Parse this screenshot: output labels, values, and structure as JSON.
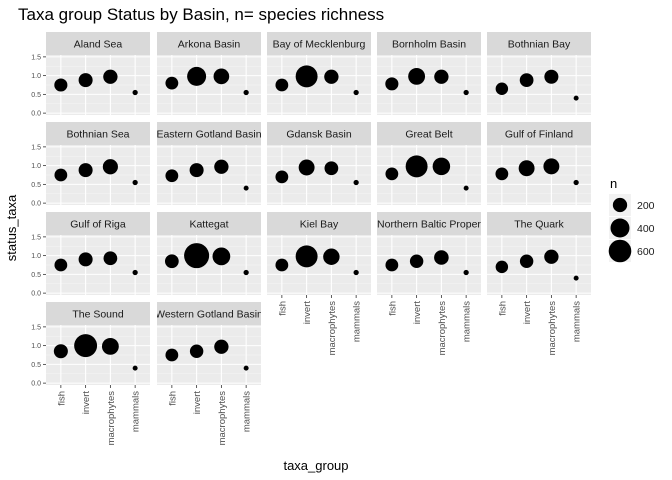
{
  "chart_data": {
    "type": "scatter",
    "title": "Taxa group Status by Basin, n= species richness",
    "xlabel": "taxa_group",
    "ylabel": "status_taxa",
    "categories": [
      "fish",
      "invert",
      "macrophytes",
      "mammals"
    ],
    "ylim": [
      -0.05,
      1.55
    ],
    "yticks": [
      "0.0",
      "0.5",
      "1.0",
      "1.5"
    ],
    "grid": true,
    "legend": {
      "title": "n",
      "position": "right",
      "entries": [
        {
          "label": "200",
          "value": 200
        },
        {
          "label": "400",
          "value": 400
        },
        {
          "label": "600",
          "value": 600
        }
      ]
    },
    "facets": [
      {
        "name": "Aland Sea",
        "y": [
          0.75,
          0.88,
          0.97,
          0.55
        ],
        "n": [
          160,
          190,
          200,
          8
        ]
      },
      {
        "name": "Arkona Basin",
        "y": [
          0.8,
          0.98,
          0.98,
          0.55
        ],
        "n": [
          150,
          400,
          250,
          8
        ]
      },
      {
        "name": "Bay of Mecklenburg",
        "y": [
          0.75,
          0.98,
          0.97,
          0.55
        ],
        "n": [
          150,
          560,
          200,
          8
        ]
      },
      {
        "name": "Bornholm Basin",
        "y": [
          0.78,
          0.98,
          0.97,
          0.55
        ],
        "n": [
          160,
          300,
          200,
          8
        ]
      },
      {
        "name": "Bothnian Bay",
        "y": [
          0.65,
          0.88,
          0.97,
          0.4
        ],
        "n": [
          140,
          180,
          190,
          6
        ]
      },
      {
        "name": "Bothnian Sea",
        "y": [
          0.75,
          0.88,
          0.97,
          0.55
        ],
        "n": [
          150,
          190,
          230,
          8
        ]
      },
      {
        "name": "Eastern Gotland Basin",
        "y": [
          0.73,
          0.88,
          0.97,
          0.4
        ],
        "n": [
          150,
          190,
          200,
          6
        ]
      },
      {
        "name": "Gdansk Basin",
        "y": [
          0.7,
          0.95,
          0.93,
          0.55
        ],
        "n": [
          150,
          260,
          180,
          8
        ]
      },
      {
        "name": "Great Belt",
        "y": [
          0.78,
          0.98,
          0.98,
          0.4
        ],
        "n": [
          150,
          560,
          330,
          6
        ]
      },
      {
        "name": "Gulf of Finland",
        "y": [
          0.78,
          0.93,
          0.98,
          0.55
        ],
        "n": [
          150,
          260,
          260,
          8
        ]
      },
      {
        "name": "Gulf of Riga",
        "y": [
          0.75,
          0.9,
          0.93,
          0.55
        ],
        "n": [
          150,
          190,
          180,
          8
        ]
      },
      {
        "name": "Kattegat",
        "y": [
          0.85,
          1.0,
          0.98,
          0.55
        ],
        "n": [
          180,
          760,
          340,
          8
        ]
      },
      {
        "name": "Kiel Bay",
        "y": [
          0.75,
          0.98,
          0.97,
          0.55
        ],
        "n": [
          150,
          560,
          280,
          8
        ]
      },
      {
        "name": "Northern Baltic Proper",
        "y": [
          0.75,
          0.85,
          0.95,
          0.55
        ],
        "n": [
          150,
          170,
          210,
          8
        ]
      },
      {
        "name": "The Quark",
        "y": [
          0.7,
          0.85,
          0.97,
          0.4
        ],
        "n": [
          140,
          170,
          200,
          6
        ]
      },
      {
        "name": "The Sound",
        "y": [
          0.85,
          1.0,
          0.98,
          0.4
        ],
        "n": [
          190,
          620,
          300,
          6
        ]
      },
      {
        "name": "Western Gotland Basin",
        "y": [
          0.75,
          0.85,
          0.97,
          0.4
        ],
        "n": [
          150,
          170,
          200,
          6
        ]
      }
    ]
  },
  "colors": {
    "panel_bg": "#ebebeb",
    "strip_bg": "#d9d9d9",
    "grid_major": "#ffffff",
    "grid_minor": "#f5f5f5",
    "point": "#000000",
    "tick": "#333333"
  }
}
